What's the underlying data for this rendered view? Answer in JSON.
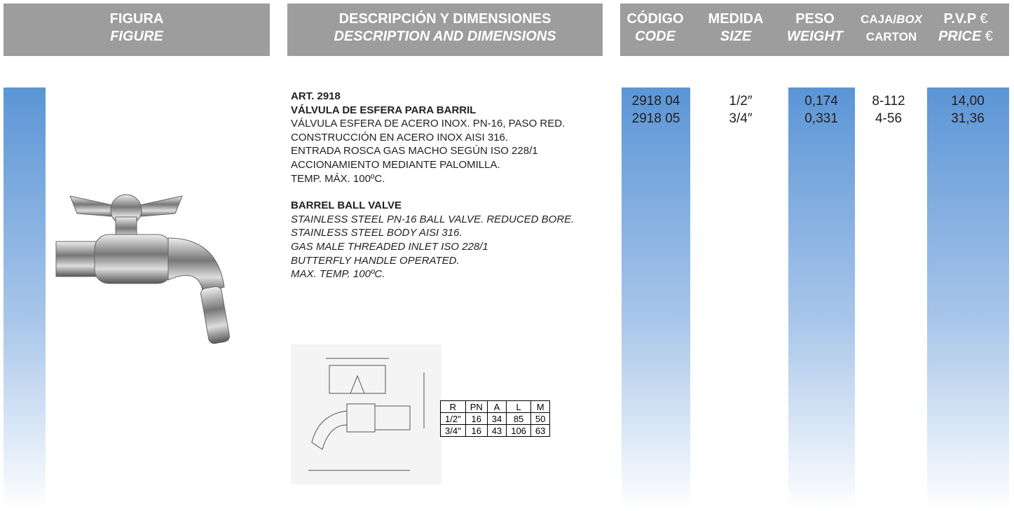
{
  "header": {
    "figure": {
      "es": "FIGURA",
      "en": "FIGURE"
    },
    "description": {
      "es": "DESCRIPCIÓN Y DIMENSIONES",
      "en": "DESCRIPTION AND DIMENSIONS"
    },
    "code": {
      "es": "CÓDIGO",
      "en": "CODE"
    },
    "size": {
      "es": "MEDIDA",
      "en": "SIZE"
    },
    "weight": {
      "es": "PESO",
      "en": "WEIGHT"
    },
    "carton": {
      "es": "CAJA/",
      "es_italic": "BOX",
      "en": "CARTON"
    },
    "price": {
      "es": "P.V.P",
      "en": "PRICE",
      "currency": "€"
    }
  },
  "product": {
    "article": "ART. 2918",
    "title_es": "VÁLVULA DE ESFERA PARA BARRIL",
    "lines_es": [
      "VÁLVULA ESFERA DE ACERO INOX. PN-16, PASO RED.",
      "CONSTRUCCIÓN EN ACERO INOX AISI 316.",
      "ENTRADA ROSCA GAS MACHO SEGÚN ISO 228/1",
      "ACCIONAMIENTO MEDIANTE PALOMILLA.",
      "TEMP. MÁX. 100ºC."
    ],
    "title_en": "BARREL BALL VALVE",
    "lines_en": [
      "STAINLESS STEEL PN-16 BALL VALVE. REDUCED BORE.",
      "STAINLESS STEEL BODY AISI 316.",
      "GAS MALE THREADED INLET ISO 228/1",
      "BUTTERFLY HANDLE OPERATED.",
      "MAX. TEMP. 100ºC."
    ],
    "dimensions": {
      "header": [
        "R",
        "PN",
        "A",
        "L",
        "M"
      ],
      "rows": [
        [
          "1/2\"",
          "16",
          "34",
          "85",
          "50"
        ],
        [
          "3/4\"",
          "16",
          "43",
          "106",
          "63"
        ]
      ]
    },
    "rows": [
      [
        "2918 04",
        "1/2″",
        "0,174",
        "8-112",
        "14,00"
      ],
      [
        "2918 05",
        "3/4″",
        "0,331",
        "4-56",
        "31,36"
      ]
    ]
  }
}
